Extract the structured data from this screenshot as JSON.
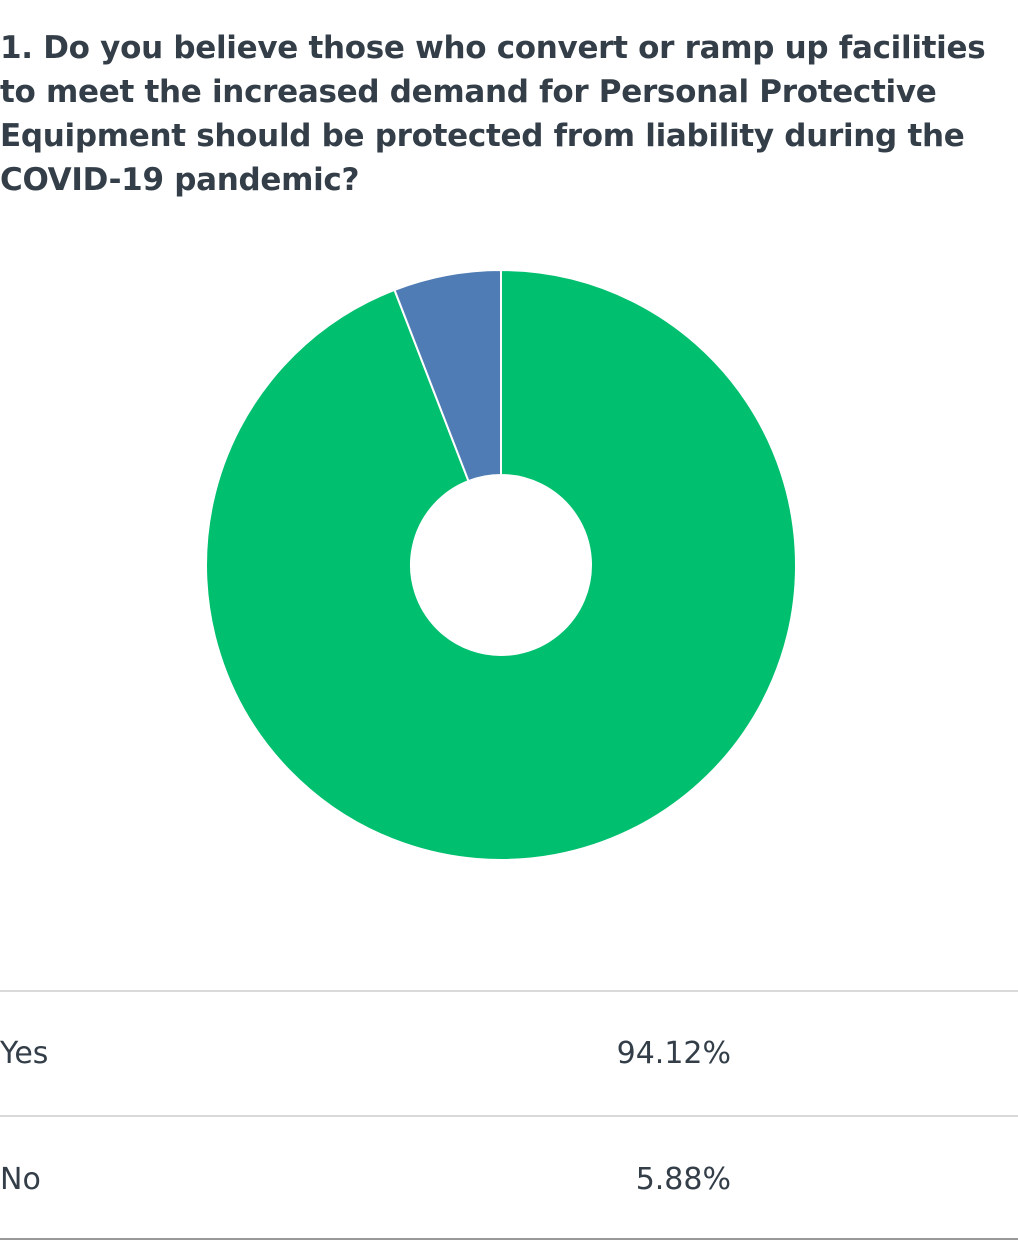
{
  "question": {
    "title": "1. Do you believe those who convert or ramp up facilities to meet the increased demand for Personal Protective Equipment should be protected from liability during the COVID-19 pandemic?"
  },
  "chart_data": {
    "type": "pie",
    "categories": [
      "Yes",
      "No"
    ],
    "values": [
      94.12,
      5.88
    ],
    "value_labels": [
      "94.12%",
      "5.88%"
    ],
    "colors": [
      "#00bf6f",
      "#507cb6"
    ],
    "title": "1. Do you believe those who convert or ramp up facilities to meet the increased demand for Personal Protective Equipment should be protected from liability during the COVID-19 pandemic?",
    "style": "donut"
  }
}
